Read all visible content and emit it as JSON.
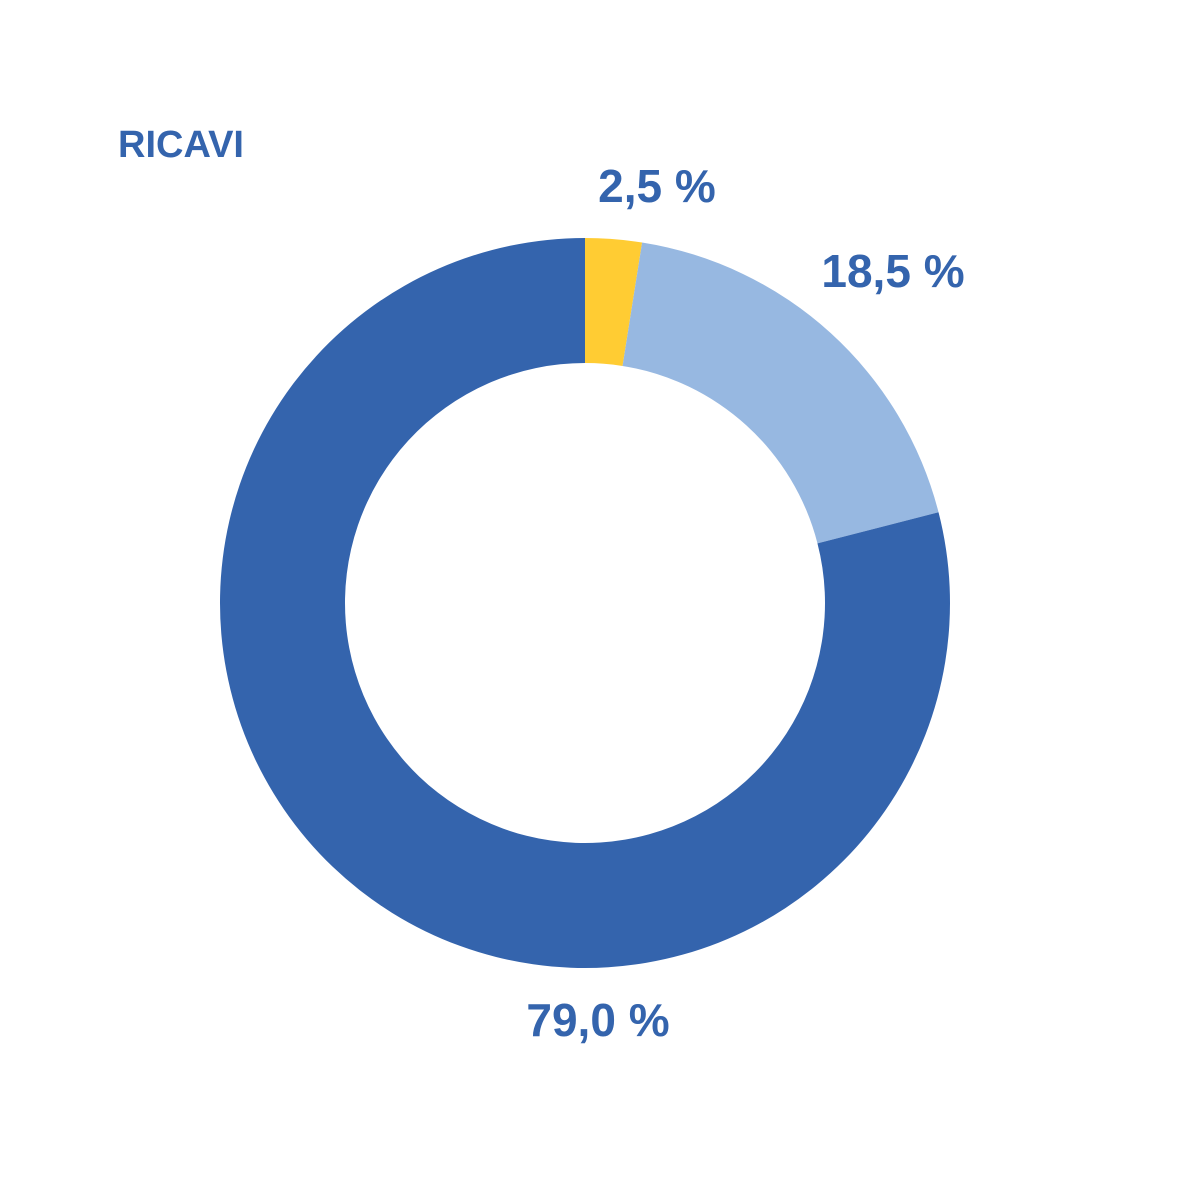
{
  "chart_data": {
    "type": "donut",
    "title": "RICAVI",
    "values": [
      2.5,
      18.5,
      79.0
    ],
    "value_labels": [
      "2,5 %",
      "18,5 %",
      "79,0 %"
    ],
    "colors": [
      "#FFCC33",
      "#97B8E1",
      "#3464AD"
    ]
  }
}
